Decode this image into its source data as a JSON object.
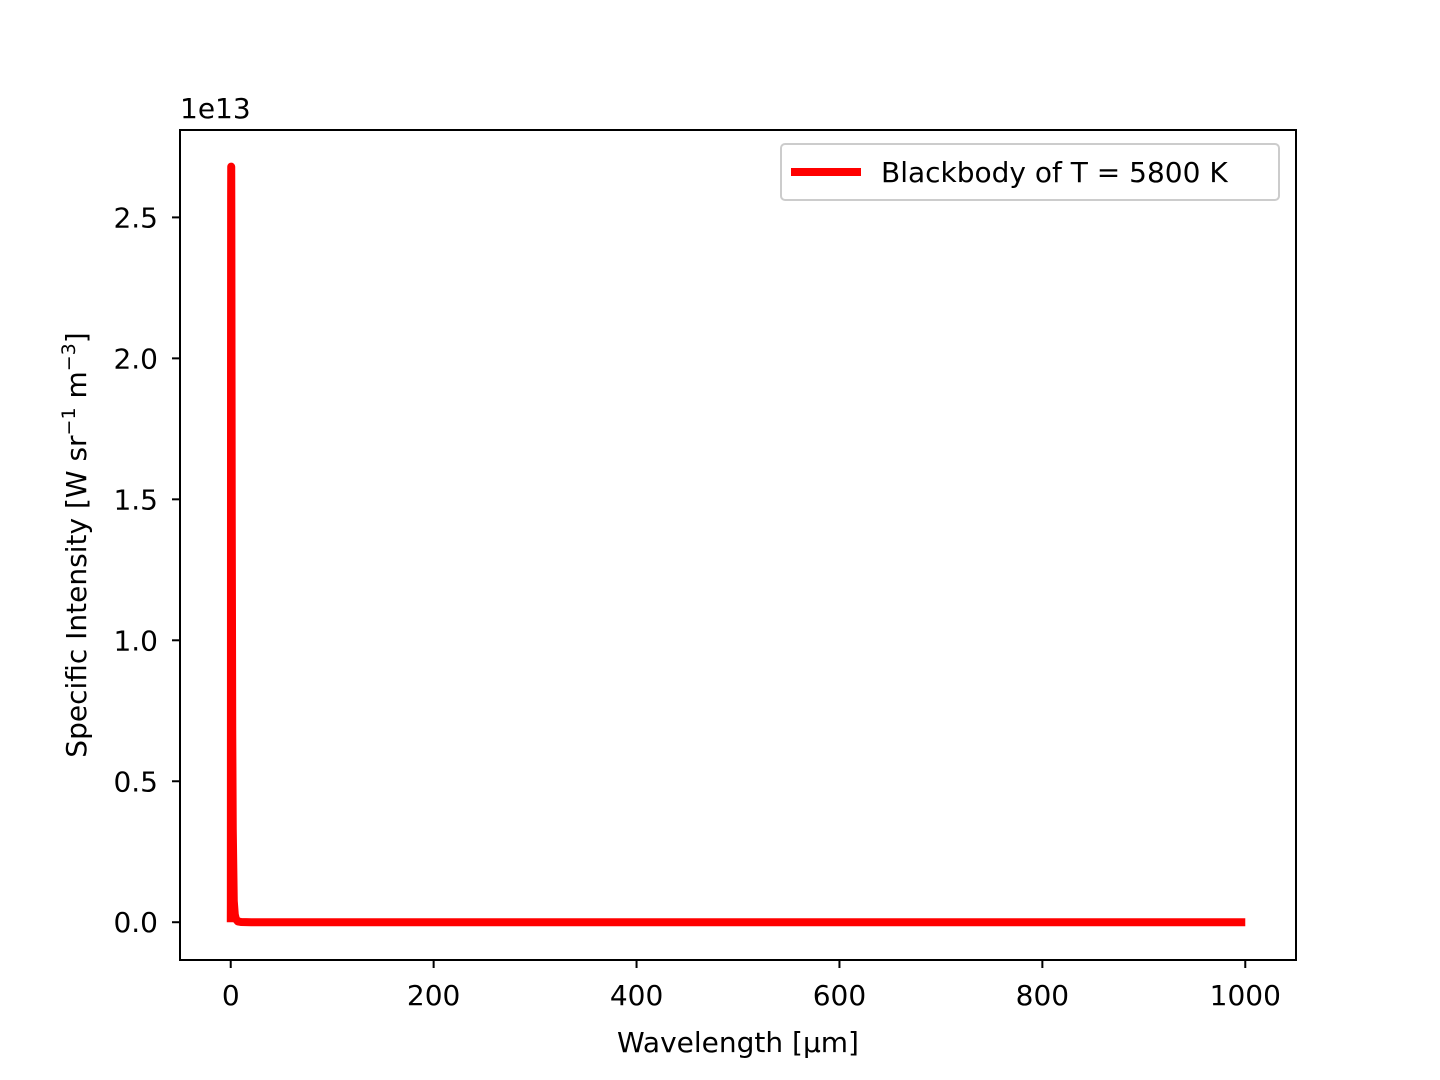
{
  "chart_data": {
    "type": "line",
    "title": "",
    "xlabel": "Wavelength [μm]",
    "ylabel": {
      "prefix": "Specific Intensity [W sr",
      "sup1": "−1",
      "middle": " m",
      "sup2": "−3",
      "suffix": "]"
    },
    "x_offset_text": "",
    "y_offset_text": "1e13",
    "xlim": [
      -50,
      1050
    ],
    "ylim": [
      -0.134,
      2.81
    ],
    "y_scale_note": "tick labels in units of 1e13",
    "xticks": [
      0,
      200,
      400,
      600,
      800,
      1000
    ],
    "xtick_labels": [
      "0",
      "200",
      "400",
      "600",
      "800",
      "1000"
    ],
    "yticks": [
      0.0,
      0.5,
      1.0,
      1.5,
      2.0,
      2.5
    ],
    "ytick_labels": [
      "0.0",
      "0.5",
      "1.0",
      "1.5",
      "2.0",
      "2.5"
    ],
    "grid": false,
    "legend_position": "top-right",
    "series": [
      {
        "name": "Blackbody of T = 5800 K",
        "color": "#ff0000",
        "x": [
          0.05,
          0.1,
          0.2,
          0.3,
          0.4,
          0.5,
          0.6,
          0.7,
          0.8,
          1,
          1.5,
          2,
          3,
          4,
          5,
          7,
          10,
          20,
          50,
          100,
          200,
          400,
          600,
          800,
          1000
        ],
        "y": [
          0.0,
          0.06,
          0.82,
          2.02,
          2.57,
          2.68,
          2.5,
          2.23,
          1.95,
          1.45,
          0.68,
          0.33,
          0.075,
          0.027,
          0.012,
          0.003,
          0.001,
          0.0,
          0.0,
          0.0,
          0.0,
          0.0,
          0.0,
          0.0,
          0.0
        ]
      }
    ]
  }
}
